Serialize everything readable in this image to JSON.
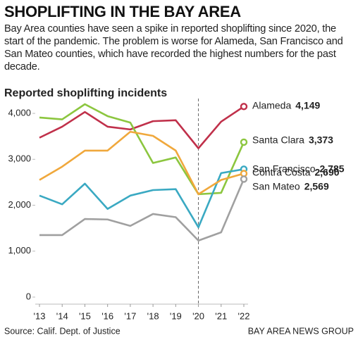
{
  "header": {
    "title": "SHOPLIFTING IN THE BAY AREA",
    "subtitle": "Bay Area counties have seen a spike in reported shoplifting since 2020, the start of the pandemic. The problem is worse for Alameda, San Francisco and San Mateo counties, which have recorded the highest numbers for the past decade."
  },
  "chart_data": {
    "type": "line",
    "title": "Reported shoplifting incidents",
    "categories": [
      "'13",
      "'14",
      "'15",
      "'16",
      "'17",
      "'18",
      "'19",
      "'20",
      "'21",
      "'22"
    ],
    "ylim": [
      0,
      4200
    ],
    "yticks": [
      0,
      {
        "value": 1000,
        "label": "1,000"
      },
      {
        "value": 2000,
        "label": "2,000"
      },
      {
        "value": 3000,
        "label": "3,000"
      },
      {
        "value": 4000,
        "label": "4,000"
      }
    ],
    "grid": false,
    "series": [
      {
        "name": "Alameda",
        "color": "#c0304a",
        "values": [
          3470,
          3710,
          4030,
          3710,
          3650,
          3830,
          3850,
          3240,
          3820,
          4149
        ],
        "value_labels": [
          null,
          null,
          null,
          null,
          null,
          null,
          null,
          null,
          null,
          "4,149"
        ]
      },
      {
        "name": "Santa Clara",
        "color": "#8cc63f",
        "values": [
          3910,
          3870,
          4200,
          3940,
          3800,
          2920,
          3040,
          2240,
          2270,
          3373
        ],
        "value_labels": [
          null,
          null,
          null,
          null,
          null,
          null,
          null,
          null,
          null,
          "3,373"
        ]
      },
      {
        "name": "San Francisco",
        "color": "#3aa9c2",
        "values": [
          2210,
          2020,
          2470,
          1920,
          2210,
          2330,
          2350,
          1520,
          2700,
          2785
        ],
        "value_labels": [
          null,
          null,
          null,
          null,
          null,
          null,
          null,
          null,
          null,
          "2,785"
        ]
      },
      {
        "name": "Contra Costa",
        "color": "#f0a83c",
        "values": [
          2550,
          2840,
          3190,
          3190,
          3600,
          3510,
          3190,
          2240,
          2550,
          2690
        ],
        "value_labels": [
          null,
          null,
          null,
          null,
          null,
          null,
          null,
          null,
          null,
          "2,690"
        ]
      },
      {
        "name": "San Mateo",
        "color": "#a0a0a0",
        "values": [
          1350,
          1350,
          1700,
          1690,
          1550,
          1810,
          1740,
          1230,
          1410,
          2569
        ],
        "value_labels": [
          null,
          null,
          null,
          null,
          null,
          null,
          null,
          null,
          null,
          "2,569"
        ]
      }
    ],
    "source": "Source: Calif. Dept. of Justice",
    "credit": "BAY AREA NEWS GROUP"
  }
}
